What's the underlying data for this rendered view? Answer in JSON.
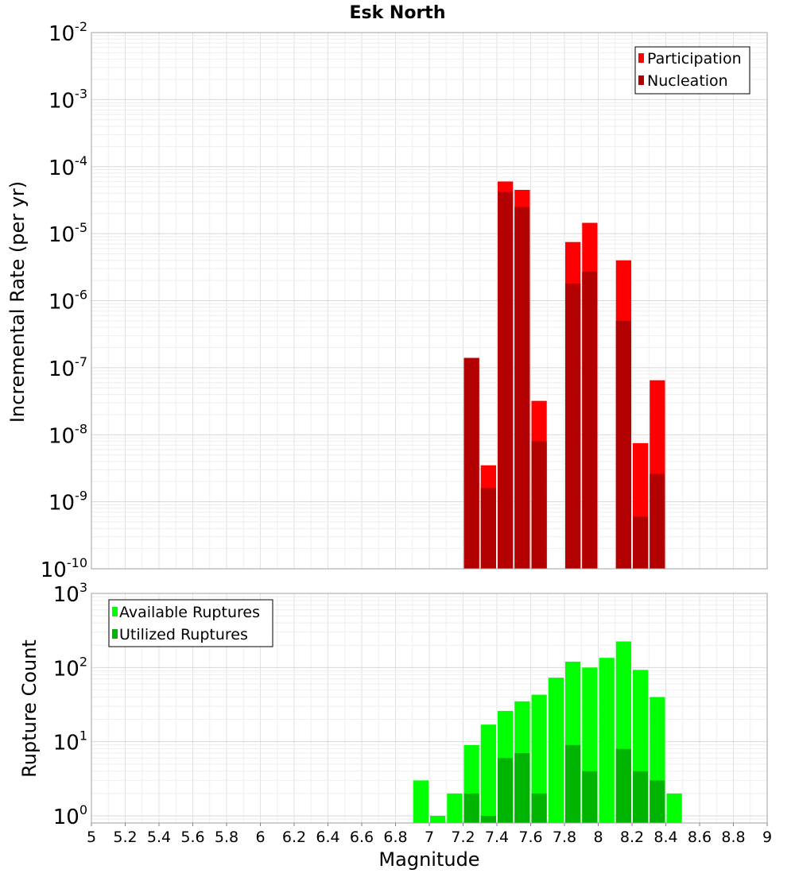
{
  "chart_data": [
    {
      "type": "bar",
      "title": "Esk North",
      "ylabel": "Incremental Rate (per yr)",
      "yscale": "log",
      "ylim": [
        1e-10,
        0.01
      ],
      "xlim": [
        5,
        9
      ],
      "grid": true,
      "legend": "top-right",
      "bin_width": 0.1,
      "y_tick_exponents": [
        "-10",
        "-9",
        "-8",
        "-7",
        "-6",
        "-5",
        "-4",
        "-3",
        "-2"
      ],
      "series": [
        {
          "name": "Participation",
          "color": "#ff0000",
          "x": [
            7.25,
            7.35,
            7.45,
            7.55,
            7.65,
            7.85,
            7.95,
            8.15,
            8.25,
            8.35
          ],
          "values": [
            1.4e-07,
            3.5e-09,
            6e-05,
            4.5e-05,
            3.2e-08,
            7.5e-06,
            1.45e-05,
            4e-06,
            7.5e-09,
            6.5e-08
          ]
        },
        {
          "name": "Nucleation",
          "color": "#b30000",
          "x": [
            7.25,
            7.35,
            7.45,
            7.55,
            7.65,
            7.85,
            7.95,
            8.15,
            8.25,
            8.35
          ],
          "values": [
            1.4e-07,
            1.6e-09,
            4.2e-05,
            2.5e-05,
            8e-09,
            1.8e-06,
            2.7e-06,
            5e-07,
            6e-10,
            2.6e-09
          ]
        }
      ]
    },
    {
      "type": "bar",
      "ylabel": "Rupture Count",
      "xlabel": "Magnitude",
      "yscale": "log",
      "ylim": [
        0.8,
        1000
      ],
      "xlim": [
        5,
        9
      ],
      "grid": true,
      "legend": "top-left",
      "bin_width": 0.1,
      "y_tick_exponents": [
        "0",
        "1",
        "2",
        "3"
      ],
      "x_ticks": [
        "5",
        "5.2",
        "5.4",
        "5.6",
        "5.8",
        "6",
        "6.2",
        "6.4",
        "6.6",
        "6.8",
        "7",
        "7.2",
        "7.4",
        "7.6",
        "7.8",
        "8",
        "8.2",
        "8.4",
        "8.6",
        "8.8",
        "9"
      ],
      "series": [
        {
          "name": "Available Ruptures",
          "color": "#00ff00",
          "x": [
            6.95,
            7.05,
            7.15,
            7.25,
            7.35,
            7.45,
            7.55,
            7.65,
            7.75,
            7.85,
            7.95,
            8.05,
            8.15,
            8.25,
            8.35,
            8.45
          ],
          "values": [
            3,
            1,
            2,
            9,
            17,
            26,
            35,
            43,
            73,
            120,
            100,
            135,
            225,
            93,
            40,
            2
          ]
        },
        {
          "name": "Utilized Ruptures",
          "color": "#00b300",
          "x": [
            7.25,
            7.35,
            7.45,
            7.55,
            7.65,
            7.85,
            7.95,
            8.15,
            8.25,
            8.35
          ],
          "values": [
            2,
            1,
            6,
            7,
            2,
            9,
            4,
            8,
            4,
            3
          ]
        }
      ]
    }
  ]
}
